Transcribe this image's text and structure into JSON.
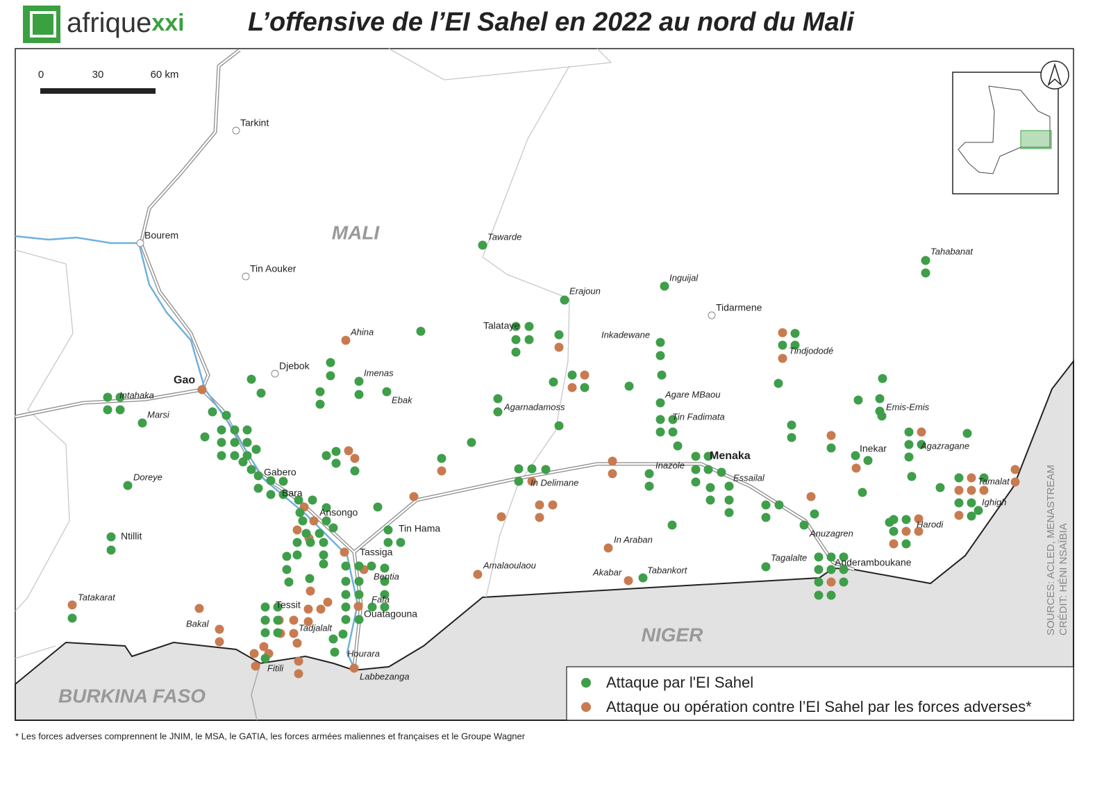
{
  "header": {
    "logo": [
      "afrique",
      "xxi"
    ],
    "title": "L’offensive de l’EI Sahel en 2022 au nord du Mali"
  },
  "scale": [
    "0",
    "30",
    "60 km"
  ],
  "countries": [
    "MALI",
    "NIGER",
    "BURKINA FASO"
  ],
  "places": [
    "Tarkint",
    "Bourem",
    "Tin Aouker",
    "Gao",
    "Djebok",
    "Ahina",
    "Imenas",
    "Ebak",
    "Intahaka",
    "Marsi",
    "Doreye",
    "Ntillit",
    "Tatakarat",
    "Bakal",
    "Tessit",
    "Tadjalalt",
    "Fitili",
    "Hourara",
    "Labbezanga",
    "Ouatagouna",
    "Fafa",
    "Bentia",
    "Tassiga",
    "Tin Hama",
    "Ansongo",
    "Bara",
    "Gabero",
    "Tawarde",
    "Erajoun",
    "Talataye",
    "Agarnadamoss",
    "In Delimane",
    "Amalaoulaou",
    "In Araban",
    "Akabar",
    "Tabankort",
    "Inkadewane",
    "Inguijal",
    "Tidarmene",
    "Agare MBaou",
    "Tin Fadimata",
    "Menaka",
    "Inazole",
    "Essailal",
    "Tahabanat",
    "Tindjododé",
    "Emis-Emis",
    "Inekar",
    "Agazragane",
    "Tamalat",
    "Ighigh",
    "Harodi",
    "Anuzagren",
    "Tagalalte",
    "Anderamboukane"
  ],
  "legend": [
    "Attaque par l'EI Sahel",
    "Attaque ou opération contre l’EI Sahel par les forces adverses*"
  ],
  "sources": "SOURCES: ACLED, MENASTREAM",
  "credit": "CRÉDIT: HÉNI NSAÏBIA",
  "footnote": "* Les forces adverses comprennent  le JNIM, le MSA, le GATIA, les forces armées maliennes et françaises et le Groupe Wagner"
}
